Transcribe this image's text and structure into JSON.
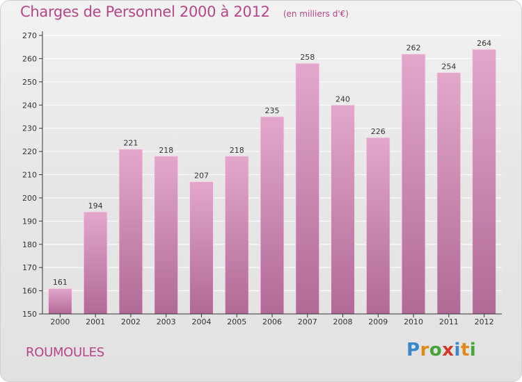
{
  "header": {
    "title": "Charges de Personnel 2000 à 2012",
    "subtitle": "(en milliers d'€)"
  },
  "footer": {
    "town": "ROUMOULES",
    "logo_letters": [
      "P",
      "r",
      "o",
      "x",
      "i",
      "t",
      "i"
    ],
    "logo_colors": [
      "#3a87c9",
      "#e08a1a",
      "#4aa33a",
      "#d03a2a",
      "#3a87c9",
      "#e08a1a",
      "#4aa33a"
    ]
  },
  "colors": {
    "bar_light": "#e3a7cc",
    "bar_dark": "#b06a96",
    "grid": "#ffffff",
    "axis": "#333333"
  },
  "chart_data": {
    "type": "bar",
    "title": "Charges de Personnel 2000 à 2012",
    "subtitle": "(en milliers d'€)",
    "categories": [
      "2000",
      "2001",
      "2002",
      "2003",
      "2004",
      "2005",
      "2006",
      "2007",
      "2008",
      "2009",
      "2010",
      "2011",
      "2012"
    ],
    "values": [
      161,
      194,
      221,
      218,
      207,
      218,
      235,
      258,
      240,
      226,
      262,
      254,
      264
    ],
    "ylim": [
      150,
      270
    ],
    "yticks": [
      150,
      160,
      170,
      180,
      190,
      200,
      210,
      220,
      230,
      240,
      250,
      260,
      270
    ],
    "grid": true,
    "data_labels": true
  }
}
